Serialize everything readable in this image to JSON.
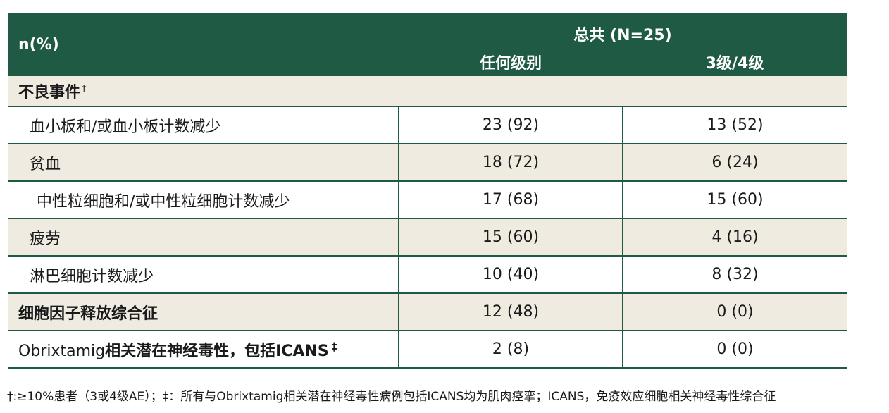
{
  "header": {
    "n_percent": "n(%)",
    "total": "总共 (N=25)",
    "col_any": "任何级别",
    "col_g34": "3级/4级"
  },
  "section": {
    "label": "不良事件",
    "mark": "†"
  },
  "rows": [
    {
      "label": "血小板和/或血小板计数减少",
      "any": "23 (92)",
      "g34": "13 (52)"
    },
    {
      "label": "贫血",
      "any": "18 (72)",
      "g34": "6 (24)"
    },
    {
      "label": "中性粒细胞和/或中性粒细胞计数减少",
      "any": "17 (68)",
      "g34": "15 (60)"
    },
    {
      "label": "疲劳",
      "any": "15 (60)",
      "g34": "4 (16)"
    },
    {
      "label": "淋巴细胞计数减少",
      "any": "10 (40)",
      "g34": "8 (32)"
    },
    {
      "label": "细胞因子释放综合征",
      "any": "12 (48)",
      "g34": "0 (0)"
    },
    {
      "label_prefix": "Obrixtamig",
      "label_rest": "相关潜在神经毒性，包括ICANS",
      "mark": "‡",
      "any": "2 (8)",
      "g34": "0 (0)"
    }
  ],
  "footnote": "†:≥10%患者（3或4级AE）；‡：所有与Obrixtamig相关潜在神经毒性病例包括ICANS均为肌肉痉挛；ICANS，免疫效应细胞相关神经毒性综合征"
}
